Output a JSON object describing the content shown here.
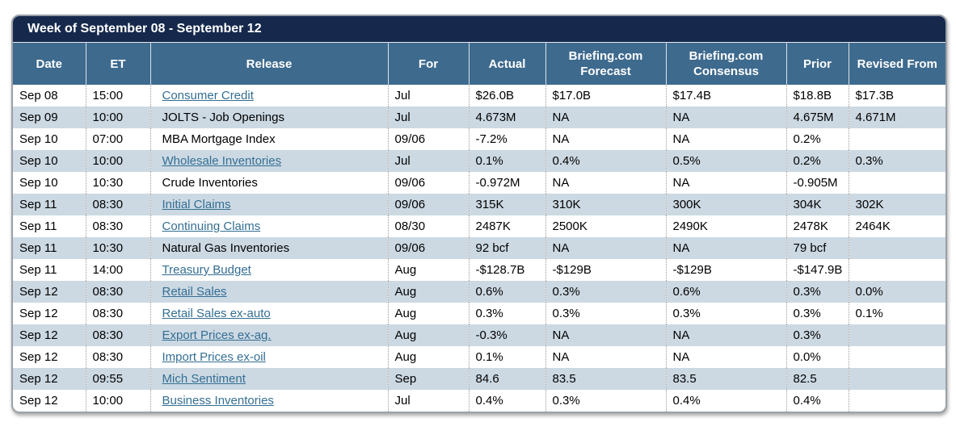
{
  "colors": {
    "titlebar_bg": "#16294d",
    "header_bg": "#3e6a8e",
    "alt_row_bg": "#ccd9e3",
    "link_color": "#346e93",
    "border_color": "#9aa0a6"
  },
  "title": "Week of September 08 - September 12",
  "table": {
    "columns": [
      "Date",
      "ET",
      "Release",
      "For",
      "Actual",
      "Briefing.com Forecast",
      "Briefing.com Consensus",
      "Prior",
      "Revised From"
    ],
    "rows": [
      {
        "date": "Sep 08",
        "et": "15:00",
        "release": "Consumer Credit",
        "is_link": true,
        "for": "Jul",
        "actual": "$26.0B",
        "forecast": "$17.0B",
        "consensus": "$17.4B",
        "prior": "$18.8B",
        "revised": "$17.3B"
      },
      {
        "date": "Sep 09",
        "et": "10:00",
        "release": "JOLTS - Job Openings",
        "is_link": false,
        "for": "Jul",
        "actual": "4.673M",
        "forecast": "NA",
        "consensus": "NA",
        "prior": "4.675M",
        "revised": "4.671M"
      },
      {
        "date": "Sep 10",
        "et": "07:00",
        "release": "MBA Mortgage Index",
        "is_link": false,
        "for": "09/06",
        "actual": "-7.2%",
        "forecast": "NA",
        "consensus": "NA",
        "prior": "0.2%",
        "revised": ""
      },
      {
        "date": "Sep 10",
        "et": "10:00",
        "release": "Wholesale Inventories",
        "is_link": true,
        "for": "Jul",
        "actual": "0.1%",
        "forecast": "0.4%",
        "consensus": "0.5%",
        "prior": "0.2%",
        "revised": "0.3%"
      },
      {
        "date": "Sep 10",
        "et": "10:30",
        "release": "Crude Inventories",
        "is_link": false,
        "for": "09/06",
        "actual": "-0.972M",
        "forecast": "NA",
        "consensus": "NA",
        "prior": "-0.905M",
        "revised": ""
      },
      {
        "date": "Sep 11",
        "et": "08:30",
        "release": "Initial Claims",
        "is_link": true,
        "for": "09/06",
        "actual": "315K",
        "forecast": "310K",
        "consensus": "300K",
        "prior": "304K",
        "revised": "302K"
      },
      {
        "date": "Sep 11",
        "et": "08:30",
        "release": "Continuing Claims",
        "is_link": true,
        "for": "08/30",
        "actual": "2487K",
        "forecast": "2500K",
        "consensus": "2490K",
        "prior": "2478K",
        "revised": "2464K"
      },
      {
        "date": "Sep 11",
        "et": "10:30",
        "release": "Natural Gas Inventories",
        "is_link": false,
        "for": "09/06",
        "actual": "92 bcf",
        "forecast": "NA",
        "consensus": "NA",
        "prior": "79 bcf",
        "revised": ""
      },
      {
        "date": "Sep 11",
        "et": "14:00",
        "release": "Treasury Budget",
        "is_link": true,
        "for": "Aug",
        "actual": "-$128.7B",
        "forecast": "-$129B",
        "consensus": "-$129B",
        "prior": "-$147.9B",
        "revised": ""
      },
      {
        "date": "Sep 12",
        "et": "08:30",
        "release": "Retail Sales",
        "is_link": true,
        "for": "Aug",
        "actual": "0.6%",
        "forecast": "0.3%",
        "consensus": "0.6%",
        "prior": "0.3%",
        "revised": "0.0%"
      },
      {
        "date": "Sep 12",
        "et": "08:30",
        "release": "Retail Sales ex-auto",
        "is_link": true,
        "for": "Aug",
        "actual": "0.3%",
        "forecast": "0.3%",
        "consensus": "0.3%",
        "prior": "0.3%",
        "revised": "0.1%"
      },
      {
        "date": "Sep 12",
        "et": "08:30",
        "release": "Export Prices ex-ag.",
        "is_link": true,
        "for": "Aug",
        "actual": "-0.3%",
        "forecast": "NA",
        "consensus": "NA",
        "prior": "0.3%",
        "revised": ""
      },
      {
        "date": "Sep 12",
        "et": "08:30",
        "release": "Import Prices ex-oil",
        "is_link": true,
        "for": "Aug",
        "actual": "0.1%",
        "forecast": "NA",
        "consensus": "NA",
        "prior": "0.0%",
        "revised": ""
      },
      {
        "date": "Sep 12",
        "et": "09:55",
        "release": "Mich Sentiment",
        "is_link": true,
        "for": "Sep",
        "actual": "84.6",
        "forecast": "83.5",
        "consensus": "83.5",
        "prior": "82.5",
        "revised": ""
      },
      {
        "date": "Sep 12",
        "et": "10:00",
        "release": "Business Inventories",
        "is_link": true,
        "for": "Jul",
        "actual": "0.4%",
        "forecast": "0.3%",
        "consensus": "0.4%",
        "prior": "0.4%",
        "revised": ""
      }
    ]
  }
}
